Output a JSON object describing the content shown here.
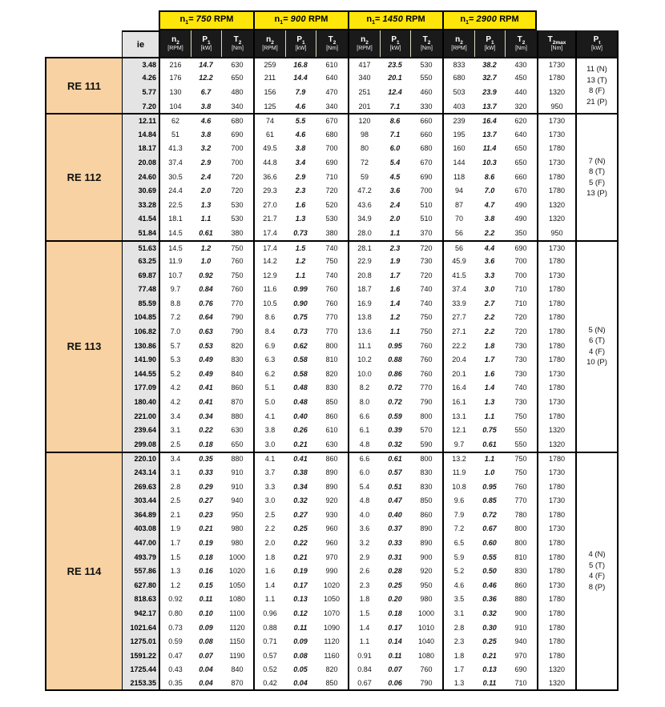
{
  "colors": {
    "yellow": "#FFE60A",
    "header_black": "#1A1A1A",
    "group_label_bg": "#F8D2A2",
    "ie_col_bg": "#E4E4E4",
    "border": "#000000"
  },
  "table": {
    "ie_label": "ie",
    "speed_headers": [
      {
        "base": "n",
        "sub": "1",
        "eq": "=",
        "value": "750",
        "unit": "RPM"
      },
      {
        "base": "n",
        "sub": "1",
        "eq": "=",
        "value": "900",
        "unit": "RPM"
      },
      {
        "base": "n",
        "sub": "1",
        "eq": "=",
        "value": "1450",
        "unit": "RPM"
      },
      {
        "base": "n",
        "sub": "1",
        "eq": "=",
        "value": "2900",
        "unit": "RPM"
      }
    ],
    "col_headers": [
      {
        "key": "n2",
        "base": "n",
        "sub": "2",
        "unit": "[RPM]"
      },
      {
        "key": "p1",
        "base": "P",
        "sub": "1",
        "unit": "[kW]"
      },
      {
        "key": "t2",
        "base": "T",
        "sub": "2",
        "unit": "[Nm]"
      }
    ],
    "t2max_header": {
      "key": "t2max",
      "base": "T",
      "sub": "2max",
      "unit": "[Nm]"
    },
    "pt_header": {
      "key": "pt",
      "base": "P",
      "sub": "t",
      "unit": "[kW]"
    },
    "groups": [
      {
        "name": "RE 111",
        "pt": [
          "11 (N)",
          "13 (T)",
          "8 (F)",
          "21 (P)"
        ],
        "rows": [
          {
            "ie": "3.48",
            "v": [
              "216",
              "14.7",
              "630",
              "259",
              "16.8",
              "610",
              "417",
              "23.5",
              "530",
              "833",
              "38.2",
              "430"
            ],
            "t2max": "1730"
          },
          {
            "ie": "4.26",
            "v": [
              "176",
              "12.2",
              "650",
              "211",
              "14.4",
              "640",
              "340",
              "20.1",
              "550",
              "680",
              "32.7",
              "450"
            ],
            "t2max": "1780"
          },
          {
            "ie": "5.77",
            "v": [
              "130",
              "6.7",
              "480",
              "156",
              "7.9",
              "470",
              "251",
              "12.4",
              "460",
              "503",
              "23.9",
              "440"
            ],
            "t2max": "1320"
          },
          {
            "ie": "7.20",
            "v": [
              "104",
              "3.8",
              "340",
              "125",
              "4.6",
              "340",
              "201",
              "7.1",
              "330",
              "403",
              "13.7",
              "320"
            ],
            "t2max": "950"
          }
        ]
      },
      {
        "name": "RE 112",
        "pt": [
          "7 (N)",
          "8 (T)",
          "5 (F)",
          "13 (P)"
        ],
        "rows": [
          {
            "ie": "12.11",
            "v": [
              "62",
              "4.6",
              "680",
              "74",
              "5.5",
              "670",
              "120",
              "8.6",
              "660",
              "239",
              "16.4",
              "620"
            ],
            "t2max": "1730"
          },
          {
            "ie": "14.84",
            "v": [
              "51",
              "3.8",
              "690",
              "61",
              "4.6",
              "680",
              "98",
              "7.1",
              "660",
              "195",
              "13.7",
              "640"
            ],
            "t2max": "1730"
          },
          {
            "ie": "18.17",
            "v": [
              "41.3",
              "3.2",
              "700",
              "49.5",
              "3.8",
              "700",
              "80",
              "6.0",
              "680",
              "160",
              "11.4",
              "650"
            ],
            "t2max": "1780"
          },
          {
            "ie": "20.08",
            "v": [
              "37.4",
              "2.9",
              "700",
              "44.8",
              "3.4",
              "690",
              "72",
              "5.4",
              "670",
              "144",
              "10.3",
              "650"
            ],
            "t2max": "1730"
          },
          {
            "ie": "24.60",
            "v": [
              "30.5",
              "2.4",
              "720",
              "36.6",
              "2.9",
              "710",
              "59",
              "4.5",
              "690",
              "118",
              "8.6",
              "660"
            ],
            "t2max": "1780"
          },
          {
            "ie": "30.69",
            "v": [
              "24.4",
              "2.0",
              "720",
              "29.3",
              "2.3",
              "720",
              "47.2",
              "3.6",
              "700",
              "94",
              "7.0",
              "670"
            ],
            "t2max": "1780"
          },
          {
            "ie": "33.28",
            "v": [
              "22.5",
              "1.3",
              "530",
              "27.0",
              "1.6",
              "520",
              "43.6",
              "2.4",
              "510",
              "87",
              "4.7",
              "490"
            ],
            "t2max": "1320"
          },
          {
            "ie": "41.54",
            "v": [
              "18.1",
              "1.1",
              "530",
              "21.7",
              "1.3",
              "530",
              "34.9",
              "2.0",
              "510",
              "70",
              "3.8",
              "490"
            ],
            "t2max": "1320"
          },
          {
            "ie": "51.84",
            "v": [
              "14.5",
              "0.61",
              "380",
              "17.4",
              "0.73",
              "380",
              "28.0",
              "1.1",
              "370",
              "56",
              "2.2",
              "350"
            ],
            "t2max": "950"
          }
        ]
      },
      {
        "name": "RE 113",
        "pt": [
          "5 (N)",
          "6 (T)",
          "4 (F)",
          "10 (P)"
        ],
        "rows": [
          {
            "ie": "51.63",
            "v": [
              "14.5",
              "1.2",
              "750",
              "17.4",
              "1.5",
              "740",
              "28.1",
              "2.3",
              "720",
              "56",
              "4.4",
              "690"
            ],
            "t2max": "1730"
          },
          {
            "ie": "63.25",
            "v": [
              "11.9",
              "1.0",
              "760",
              "14.2",
              "1.2",
              "750",
              "22.9",
              "1.9",
              "730",
              "45.9",
              "3.6",
              "700"
            ],
            "t2max": "1780"
          },
          {
            "ie": "69.87",
            "v": [
              "10.7",
              "0.92",
              "750",
              "12.9",
              "1.1",
              "740",
              "20.8",
              "1.7",
              "720",
              "41.5",
              "3.3",
              "700"
            ],
            "t2max": "1730"
          },
          {
            "ie": "77.48",
            "v": [
              "9.7",
              "0.84",
              "760",
              "11.6",
              "0.99",
              "760",
              "18.7",
              "1.6",
              "740",
              "37.4",
              "3.0",
              "710"
            ],
            "t2max": "1780"
          },
          {
            "ie": "85.59",
            "v": [
              "8.8",
              "0.76",
              "770",
              "10.5",
              "0.90",
              "760",
              "16.9",
              "1.4",
              "740",
              "33.9",
              "2.7",
              "710"
            ],
            "t2max": "1780"
          },
          {
            "ie": "104.85",
            "v": [
              "7.2",
              "0.64",
              "790",
              "8.6",
              "0.75",
              "770",
              "13.8",
              "1.2",
              "750",
              "27.7",
              "2.2",
              "720"
            ],
            "t2max": "1780"
          },
          {
            "ie": "106.82",
            "v": [
              "7.0",
              "0.63",
              "790",
              "8.4",
              "0.73",
              "770",
              "13.6",
              "1.1",
              "750",
              "27.1",
              "2.2",
              "720"
            ],
            "t2max": "1780"
          },
          {
            "ie": "130.86",
            "v": [
              "5.7",
              "0.53",
              "820",
              "6.9",
              "0.62",
              "800",
              "11.1",
              "0.95",
              "760",
              "22.2",
              "1.8",
              "730"
            ],
            "t2max": "1780"
          },
          {
            "ie": "141.90",
            "v": [
              "5.3",
              "0.49",
              "830",
              "6.3",
              "0.58",
              "810",
              "10.2",
              "0.88",
              "760",
              "20.4",
              "1.7",
              "730"
            ],
            "t2max": "1780"
          },
          {
            "ie": "144.55",
            "v": [
              "5.2",
              "0.49",
              "840",
              "6.2",
              "0.58",
              "820",
              "10.0",
              "0.86",
              "760",
              "20.1",
              "1.6",
              "730"
            ],
            "t2max": "1730"
          },
          {
            "ie": "177.09",
            "v": [
              "4.2",
              "0.41",
              "860",
              "5.1",
              "0.48",
              "830",
              "8.2",
              "0.72",
              "770",
              "16.4",
              "1.4",
              "740"
            ],
            "t2max": "1780"
          },
          {
            "ie": "180.40",
            "v": [
              "4.2",
              "0.41",
              "870",
              "5.0",
              "0.48",
              "850",
              "8.0",
              "0.72",
              "790",
              "16.1",
              "1.3",
              "730"
            ],
            "t2max": "1730"
          },
          {
            "ie": "221.00",
            "v": [
              "3.4",
              "0.34",
              "880",
              "4.1",
              "0.40",
              "860",
              "6.6",
              "0.59",
              "800",
              "13.1",
              "1.1",
              "750"
            ],
            "t2max": "1780"
          },
          {
            "ie": "239.64",
            "v": [
              "3.1",
              "0.22",
              "630",
              "3.8",
              "0.26",
              "610",
              "6.1",
              "0.39",
              "570",
              "12.1",
              "0.75",
              "550"
            ],
            "t2max": "1320"
          },
          {
            "ie": "299.08",
            "v": [
              "2.5",
              "0.18",
              "650",
              "3.0",
              "0.21",
              "630",
              "4.8",
              "0.32",
              "590",
              "9.7",
              "0.61",
              "550"
            ],
            "t2max": "1320"
          }
        ]
      },
      {
        "name": "RE 114",
        "pt": [
          "4 (N)",
          "5 (T)",
          "4 (F)",
          "8 (P)"
        ],
        "rows": [
          {
            "ie": "220.10",
            "v": [
              "3.4",
              "0.35",
              "880",
              "4.1",
              "0.41",
              "860",
              "6.6",
              "0.61",
              "800",
              "13.2",
              "1.1",
              "750"
            ],
            "t2max": "1780"
          },
          {
            "ie": "243.14",
            "v": [
              "3.1",
              "0.33",
              "910",
              "3.7",
              "0.38",
              "890",
              "6.0",
              "0.57",
              "830",
              "11.9",
              "1.0",
              "750"
            ],
            "t2max": "1730"
          },
          {
            "ie": "269.63",
            "v": [
              "2.8",
              "0.29",
              "910",
              "3.3",
              "0.34",
              "890",
              "5.4",
              "0.51",
              "830",
              "10.8",
              "0.95",
              "760"
            ],
            "t2max": "1780"
          },
          {
            "ie": "303.44",
            "v": [
              "2.5",
              "0.27",
              "940",
              "3.0",
              "0.32",
              "920",
              "4.8",
              "0.47",
              "850",
              "9.6",
              "0.85",
              "770"
            ],
            "t2max": "1730"
          },
          {
            "ie": "364.89",
            "v": [
              "2.1",
              "0.23",
              "950",
              "2.5",
              "0.27",
              "930",
              "4.0",
              "0.40",
              "860",
              "7.9",
              "0.72",
              "780"
            ],
            "t2max": "1780"
          },
          {
            "ie": "403.08",
            "v": [
              "1.9",
              "0.21",
              "980",
              "2.2",
              "0.25",
              "960",
              "3.6",
              "0.37",
              "890",
              "7.2",
              "0.67",
              "800"
            ],
            "t2max": "1730"
          },
          {
            "ie": "447.00",
            "v": [
              "1.7",
              "0.19",
              "980",
              "2.0",
              "0.22",
              "960",
              "3.2",
              "0.33",
              "890",
              "6.5",
              "0.60",
              "800"
            ],
            "t2max": "1780"
          },
          {
            "ie": "493.79",
            "v": [
              "1.5",
              "0.18",
              "1000",
              "1.8",
              "0.21",
              "970",
              "2.9",
              "0.31",
              "900",
              "5.9",
              "0.55",
              "810"
            ],
            "t2max": "1780"
          },
          {
            "ie": "557.86",
            "v": [
              "1.3",
              "0.16",
              "1020",
              "1.6",
              "0.19",
              "990",
              "2.6",
              "0.28",
              "920",
              "5.2",
              "0.50",
              "830"
            ],
            "t2max": "1780"
          },
          {
            "ie": "627.80",
            "v": [
              "1.2",
              "0.15",
              "1050",
              "1.4",
              "0.17",
              "1020",
              "2.3",
              "0.25",
              "950",
              "4.6",
              "0.46",
              "860"
            ],
            "t2max": "1730"
          },
          {
            "ie": "818.63",
            "v": [
              "0.92",
              "0.11",
              "1080",
              "1.1",
              "0.13",
              "1050",
              "1.8",
              "0.20",
              "980",
              "3.5",
              "0.36",
              "880"
            ],
            "t2max": "1780"
          },
          {
            "ie": "942.17",
            "v": [
              "0.80",
              "0.10",
              "1100",
              "0.96",
              "0.12",
              "1070",
              "1.5",
              "0.18",
              "1000",
              "3.1",
              "0.32",
              "900"
            ],
            "t2max": "1780"
          },
          {
            "ie": "1021.64",
            "v": [
              "0.73",
              "0.09",
              "1120",
              "0.88",
              "0.11",
              "1090",
              "1.4",
              "0.17",
              "1010",
              "2.8",
              "0.30",
              "910"
            ],
            "t2max": "1780"
          },
          {
            "ie": "1275.01",
            "v": [
              "0.59",
              "0.08",
              "1150",
              "0.71",
              "0.09",
              "1120",
              "1.1",
              "0.14",
              "1040",
              "2.3",
              "0.25",
              "940"
            ],
            "t2max": "1780"
          },
          {
            "ie": "1591.22",
            "v": [
              "0.47",
              "0.07",
              "1190",
              "0.57",
              "0.08",
              "1160",
              "0.91",
              "0.11",
              "1080",
              "1.8",
              "0.21",
              "970"
            ],
            "t2max": "1780"
          },
          {
            "ie": "1725.44",
            "v": [
              "0.43",
              "0.04",
              "840",
              "0.52",
              "0.05",
              "820",
              "0.84",
              "0.07",
              "760",
              "1.7",
              "0.13",
              "690"
            ],
            "t2max": "1320"
          },
          {
            "ie": "2153.35",
            "v": [
              "0.35",
              "0.04",
              "870",
              "0.42",
              "0.04",
              "850",
              "0.67",
              "0.06",
              "790",
              "1.3",
              "0.11",
              "710"
            ],
            "t2max": "1320"
          }
        ]
      }
    ]
  }
}
